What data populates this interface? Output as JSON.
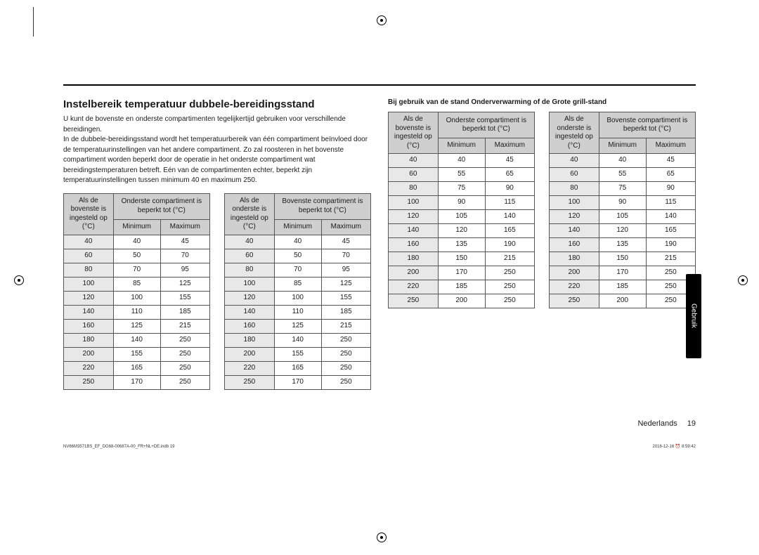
{
  "heading": "Instelbereik temperatuur dubbele-bereidingsstand",
  "intro": "U kunt de bovenste en onderste compartimenten tegelijkertijd gebruiken voor verschillende bereidingen.\nIn de dubbele-bereidingsstand wordt het temperatuurbereik van één compartiment beïnvloed door de temperatuurinstellingen van het andere compartiment. Zo zal roosteren in het bovenste compartiment worden beperkt door de operatie in het onderste compartiment wat bereidingstemperaturen betreft. Eén van de compartimenten echter, beperkt zijn temperatuurinstellingen tussen minimum 40 en maximum 250.",
  "subhead": "Bij gebruik van de stand Onderverwarming of de Grote grill-stand",
  "headers": {
    "bovenste_set": "Als de bovenste is ingesteld op (°C)",
    "onderste_set": "Als de onderste is ingesteld op (°C)",
    "onderste_limited": "Onderste compartiment is beperkt tot (°C)",
    "bovenste_limited": "Bovenste compartiment is beperkt tot (°C)",
    "min": "Minimum",
    "max": "Maximum"
  },
  "tableA_rows": [
    [
      "40",
      "40",
      "45"
    ],
    [
      "60",
      "50",
      "70"
    ],
    [
      "80",
      "70",
      "95"
    ],
    [
      "100",
      "85",
      "125"
    ],
    [
      "120",
      "100",
      "155"
    ],
    [
      "140",
      "110",
      "185"
    ],
    [
      "160",
      "125",
      "215"
    ],
    [
      "180",
      "140",
      "250"
    ],
    [
      "200",
      "155",
      "250"
    ],
    [
      "220",
      "165",
      "250"
    ],
    [
      "250",
      "170",
      "250"
    ]
  ],
  "tableB_rows": [
    [
      "40",
      "40",
      "45"
    ],
    [
      "60",
      "50",
      "70"
    ],
    [
      "80",
      "70",
      "95"
    ],
    [
      "100",
      "85",
      "125"
    ],
    [
      "120",
      "100",
      "155"
    ],
    [
      "140",
      "110",
      "185"
    ],
    [
      "160",
      "125",
      "215"
    ],
    [
      "180",
      "140",
      "250"
    ],
    [
      "200",
      "155",
      "250"
    ],
    [
      "220",
      "165",
      "250"
    ],
    [
      "250",
      "170",
      "250"
    ]
  ],
  "tableC_rows": [
    [
      "40",
      "40",
      "45"
    ],
    [
      "60",
      "55",
      "65"
    ],
    [
      "80",
      "75",
      "90"
    ],
    [
      "100",
      "90",
      "115"
    ],
    [
      "120",
      "105",
      "140"
    ],
    [
      "140",
      "120",
      "165"
    ],
    [
      "160",
      "135",
      "190"
    ],
    [
      "180",
      "150",
      "215"
    ],
    [
      "200",
      "170",
      "250"
    ],
    [
      "220",
      "185",
      "250"
    ],
    [
      "250",
      "200",
      "250"
    ]
  ],
  "tableD_rows": [
    [
      "40",
      "40",
      "45"
    ],
    [
      "60",
      "55",
      "65"
    ],
    [
      "80",
      "75",
      "90"
    ],
    [
      "100",
      "90",
      "115"
    ],
    [
      "120",
      "105",
      "140"
    ],
    [
      "140",
      "120",
      "165"
    ],
    [
      "160",
      "135",
      "190"
    ],
    [
      "180",
      "150",
      "215"
    ],
    [
      "200",
      "170",
      "250"
    ],
    [
      "220",
      "185",
      "250"
    ],
    [
      "250",
      "200",
      "250"
    ]
  ],
  "side_tab": "Gebruik",
  "footer_right": "Nederlands  19",
  "tiny_left": "NV66M3571BS_EF_DG68-00687A-00_FR+NL+DE.indb   19",
  "tiny_right": "2016-12-16   ⏰ 8:59:42"
}
